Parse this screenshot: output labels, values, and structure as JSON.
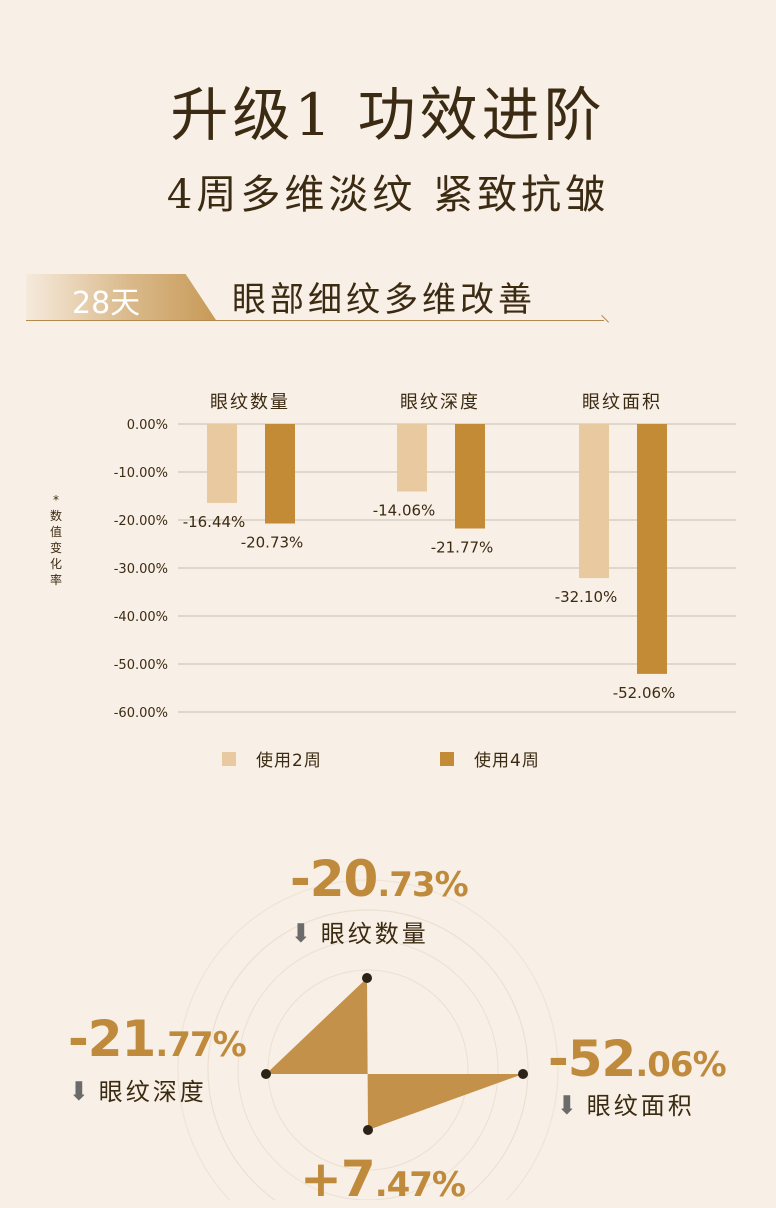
{
  "header": {
    "title": "升级1  功效进阶",
    "subtitle": "4周多维淡纹  紧致抗皱"
  },
  "section": {
    "badge": "28天",
    "title": "眼部细纹多维改善"
  },
  "chart_data": {
    "type": "bar",
    "categories": [
      "眼纹数量",
      "眼纹深度",
      "眼纹面积"
    ],
    "ylabel": "*数值变化率",
    "ylim": [
      -60,
      0
    ],
    "yticks": [
      "0.00%",
      "-10.00%",
      "-20.00%",
      "-30.00%",
      "-40.00%",
      "-50.00%",
      "-60.00%"
    ],
    "grid": true,
    "legend_position": "bottom",
    "series": [
      {
        "name": "使用2周",
        "color": "#e8c9a0",
        "values": [
          -16.44,
          -14.06,
          -32.1
        ],
        "labels": [
          "-16.44%",
          "-14.06%",
          "-32.10%"
        ]
      },
      {
        "name": "使用4周",
        "color": "#c48b36",
        "values": [
          -20.73,
          -21.77,
          -52.06
        ],
        "labels": [
          "-20.73%",
          "-21.77%",
          "-52.06%"
        ]
      }
    ]
  },
  "radar": {
    "color": "#c4914a",
    "top": {
      "main": "-20",
      "frac": ".73%",
      "label": "眼纹数量"
    },
    "left": {
      "main": "-21",
      "frac": ".77%",
      "label": "眼纹深度"
    },
    "right": {
      "main": "-52",
      "frac": ".06%",
      "label": "眼纹面积"
    },
    "bottom": {
      "main": "+7",
      "frac": ".47%"
    }
  }
}
